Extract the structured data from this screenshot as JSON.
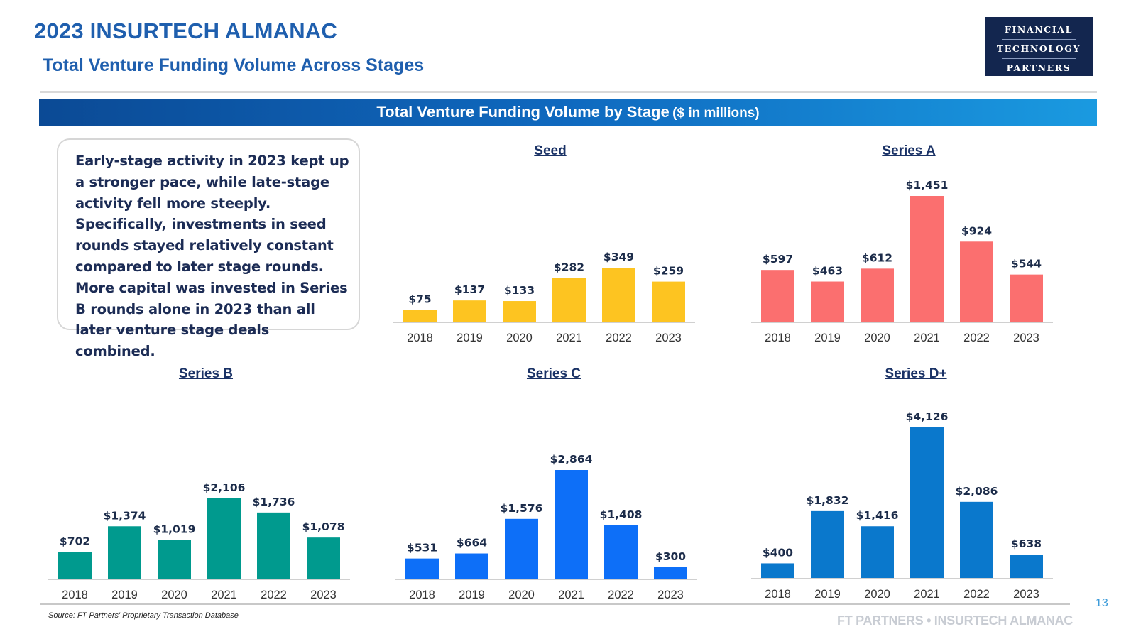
{
  "header": {
    "title": "2023 INSURTECH ALMANAC",
    "subtitle": "Total Venture Funding Volume Across Stages"
  },
  "logo": {
    "line1": "FINANCIAL",
    "line2": "TECHNOLOGY",
    "line3": "PARTNERS"
  },
  "banner": {
    "title": "Total Venture Funding Volume by Stage",
    "unit": "($ in millions)"
  },
  "callout": {
    "text": "Early-stage activity in 2023 kept up a stronger pace, while late-stage activity fell more steeply. Specifically, investments in seed rounds stayed relatively constant compared to later stage rounds. More capital was invested in Series B rounds alone in 2023 than all later venture stage deals combined."
  },
  "colors": {
    "brand_blue": "#1f5fae",
    "seed": "#fdc421",
    "series_a": "#fb6f6f",
    "series_b": "#009a8e",
    "series_c": "#0d6ff8",
    "series_d": "#0a78cc"
  },
  "chart_data": [
    {
      "id": "seed",
      "type": "bar",
      "title": "Seed",
      "categories": [
        "2018",
        "2019",
        "2020",
        "2021",
        "2022",
        "2023"
      ],
      "values": [
        75,
        137,
        133,
        282,
        349,
        259
      ],
      "labels": [
        "$75",
        "$137",
        "$133",
        "$282",
        "$349",
        "$259"
      ],
      "color": "#fdc421",
      "unit": "$ in millions"
    },
    {
      "id": "series-a",
      "type": "bar",
      "title": "Series A",
      "categories": [
        "2018",
        "2019",
        "2020",
        "2021",
        "2022",
        "2023"
      ],
      "values": [
        597,
        463,
        612,
        1451,
        924,
        544
      ],
      "labels": [
        "$597",
        "$463",
        "$612",
        "$1,451",
        "$924",
        "$544"
      ],
      "color": "#fb6f6f",
      "unit": "$ in millions"
    },
    {
      "id": "series-b",
      "type": "bar",
      "title": "Series B",
      "categories": [
        "2018",
        "2019",
        "2020",
        "2021",
        "2022",
        "2023"
      ],
      "values": [
        702,
        1374,
        1019,
        2106,
        1736,
        1078
      ],
      "labels": [
        "$702",
        "$1,374",
        "$1,019",
        "$2,106",
        "$1,736",
        "$1,078"
      ],
      "color": "#009a8e",
      "unit": "$ in millions"
    },
    {
      "id": "series-c",
      "type": "bar",
      "title": "Series C",
      "categories": [
        "2018",
        "2019",
        "2020",
        "2021",
        "2022",
        "2023"
      ],
      "values": [
        531,
        664,
        1576,
        2864,
        1408,
        300
      ],
      "labels": [
        "$531",
        "$664",
        "$1,576",
        "$2,864",
        "$1,408",
        "$300"
      ],
      "color": "#0d6ff8",
      "unit": "$ in millions"
    },
    {
      "id": "series-d",
      "type": "bar",
      "title": "Series D+",
      "categories": [
        "2018",
        "2019",
        "2020",
        "2021",
        "2022",
        "2023"
      ],
      "values": [
        400,
        1832,
        1416,
        4126,
        2086,
        638
      ],
      "labels": [
        "$400",
        "$1,832",
        "$1,416",
        "$4,126",
        "$2,086",
        "$638"
      ],
      "color": "#0a78cc",
      "unit": "$ in millions"
    }
  ],
  "footer": {
    "source": "Source: FT Partners' Proprietary Transaction Database",
    "page_number": "13",
    "brand": "FT PARTNERS • INSURTECH ALMANAC"
  }
}
